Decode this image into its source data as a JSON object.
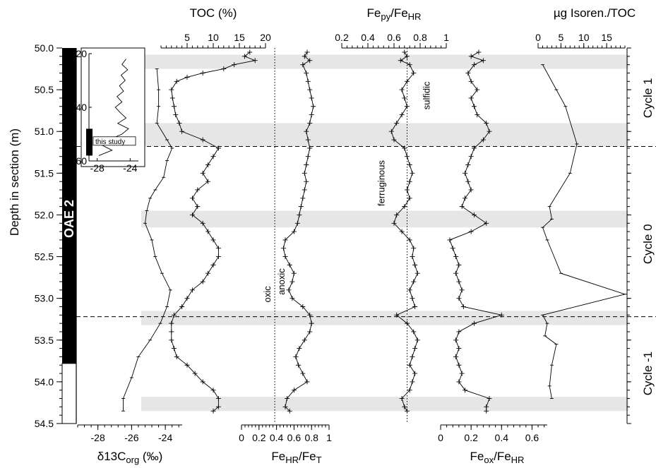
{
  "chart_data": {
    "type": "line",
    "depth_axis": {
      "label": "Depth in section (m)",
      "range": [
        50.0,
        54.5
      ],
      "ticks": [
        "50.0",
        "50.5",
        "51.0",
        "51.5",
        "52.0",
        "52.5",
        "53.0",
        "53.5",
        "54.0",
        "54.5"
      ],
      "inverted": true
    },
    "grey_bands_m": [
      [
        50.08,
        50.25
      ],
      [
        50.9,
        51.18
      ],
      [
        51.95,
        52.15
      ],
      [
        53.15,
        53.32
      ],
      [
        54.18,
        54.35
      ]
    ],
    "dashed_boundaries_m": [
      51.18,
      53.22
    ],
    "oae_label": "OAE 2",
    "cycles": [
      {
        "label": "Cycle 1",
        "center_m": 50.6
      },
      {
        "label": "Cycle 0",
        "center_m": 52.35
      },
      {
        "label": "Cycle -1",
        "center_m": 53.9
      }
    ],
    "panels": {
      "d13c": {
        "xlabel_parts": [
          "δ13C",
          "org",
          " (‰)"
        ],
        "ticks": [
          "-28",
          "-26",
          "-24"
        ],
        "tick_values": [
          -28,
          -26,
          -24
        ],
        "range": [
          -29.2,
          -23.0
        ],
        "depth": [
          50.25,
          50.5,
          50.7,
          50.9,
          51.1,
          51.2,
          51.35,
          51.55,
          51.7,
          51.8,
          51.95,
          52.1,
          52.3,
          52.5,
          52.7,
          52.9,
          53.1,
          53.3,
          53.5,
          53.7,
          53.95,
          54.2,
          54.35
        ],
        "values": [
          -24.5,
          -24.4,
          -24.4,
          -24.5,
          -23.9,
          -23.6,
          -23.9,
          -24.1,
          -24.6,
          -24.9,
          -25.1,
          -25.2,
          -24.8,
          -24.6,
          -24.2,
          -23.7,
          -23.9,
          -24.3,
          -24.9,
          -25.6,
          -26.0,
          -26.5,
          -26.5
        ]
      },
      "toc": {
        "title": "TOC (%)",
        "ticks": [
          "5",
          "10",
          "15",
          "20"
        ],
        "tick_values": [
          5,
          10,
          15,
          20
        ],
        "range": [
          0,
          20
        ],
        "depth": [
          50.05,
          50.1,
          50.15,
          50.2,
          50.25,
          50.3,
          50.35,
          50.4,
          50.5,
          50.6,
          50.7,
          50.8,
          50.9,
          51.0,
          51.1,
          51.2,
          51.3,
          51.4,
          51.5,
          51.6,
          51.7,
          51.8,
          51.9,
          52.0,
          52.1,
          52.2,
          52.3,
          52.4,
          52.5,
          52.6,
          52.7,
          52.8,
          52.9,
          53.0,
          53.1,
          53.2,
          53.3,
          53.4,
          53.5,
          53.6,
          53.7,
          53.8,
          53.9,
          54.0,
          54.1,
          54.2,
          54.3,
          54.35
        ],
        "values": [
          17,
          16,
          18,
          14,
          12,
          8,
          5,
          3,
          2,
          2.2,
          2.5,
          2.8,
          3.5,
          4,
          8,
          11,
          10,
          9,
          8,
          9,
          7,
          6,
          7,
          6,
          8,
          9,
          10,
          11,
          11,
          10,
          9,
          8,
          6,
          5,
          4,
          2.5,
          2,
          2,
          2,
          2.5,
          3,
          5,
          6.5,
          8,
          10,
          11,
          11,
          10
        ]
      },
      "fehr_fet": {
        "xlabel_parts": [
          "Fe",
          "HR",
          "/Fe",
          "T"
        ],
        "ticks": [
          "0",
          "0.2",
          "0.4",
          "0.6",
          "0.8",
          "1"
        ],
        "tick_values": [
          0,
          0.2,
          0.4,
          0.6,
          0.8,
          1
        ],
        "range": [
          0,
          1
        ],
        "threshold_value": 0.38,
        "threshold_labels": [
          "oxic",
          "anoxic"
        ],
        "depth": [
          50.05,
          50.1,
          50.15,
          50.2,
          50.3,
          50.4,
          50.5,
          50.6,
          50.7,
          50.8,
          50.9,
          51.0,
          51.1,
          51.2,
          51.3,
          51.4,
          51.5,
          51.6,
          51.7,
          51.8,
          51.9,
          52.0,
          52.1,
          52.2,
          52.3,
          52.4,
          52.5,
          52.6,
          52.7,
          52.8,
          52.9,
          53.0,
          53.1,
          53.2,
          53.3,
          53.4,
          53.5,
          53.6,
          53.7,
          53.8,
          53.9,
          54.0,
          54.1,
          54.2,
          54.3,
          54.35
        ],
        "values": [
          0.75,
          0.72,
          0.78,
          0.7,
          0.74,
          0.76,
          0.78,
          0.8,
          0.82,
          0.8,
          0.78,
          0.74,
          0.76,
          0.78,
          0.76,
          0.74,
          0.72,
          0.74,
          0.72,
          0.7,
          0.68,
          0.66,
          0.64,
          0.6,
          0.5,
          0.48,
          0.5,
          0.55,
          0.6,
          0.58,
          0.54,
          0.58,
          0.7,
          0.78,
          0.8,
          0.78,
          0.72,
          0.66,
          0.62,
          0.65,
          0.7,
          0.75,
          0.6,
          0.52,
          0.5,
          0.55
        ]
      },
      "fepy_fehr": {
        "title_parts": [
          "Fe",
          "py",
          "/Fe",
          "HR"
        ],
        "ticks": [
          "0.2",
          "0.4",
          "0.6",
          "0.8",
          "1"
        ],
        "tick_values": [
          0.2,
          0.4,
          0.6,
          0.8,
          1
        ],
        "range": [
          0.2,
          1
        ],
        "threshold_value": 0.7,
        "threshold_labels": [
          "ferruginous",
          "sulfidic"
        ],
        "depth": [
          50.05,
          50.1,
          50.15,
          50.2,
          50.3,
          50.4,
          50.5,
          50.6,
          50.7,
          50.8,
          50.9,
          51.0,
          51.1,
          51.2,
          51.3,
          51.4,
          51.5,
          51.6,
          51.7,
          51.8,
          51.9,
          52.0,
          52.1,
          52.2,
          52.3,
          52.4,
          52.5,
          52.6,
          52.7,
          52.8,
          52.9,
          53.0,
          53.1,
          53.2,
          53.3,
          53.4,
          53.5,
          53.6,
          53.7,
          53.8,
          53.9,
          54.0,
          54.1,
          54.2,
          54.3,
          54.35
        ],
        "values": [
          0.68,
          0.7,
          0.65,
          0.72,
          0.75,
          0.7,
          0.66,
          0.68,
          0.7,
          0.66,
          0.62,
          0.58,
          0.6,
          0.68,
          0.7,
          0.72,
          0.74,
          0.72,
          0.7,
          0.72,
          0.68,
          0.62,
          0.6,
          0.66,
          0.72,
          0.75,
          0.74,
          0.76,
          0.78,
          0.75,
          0.72,
          0.74,
          0.76,
          0.62,
          0.7,
          0.75,
          0.78,
          0.76,
          0.74,
          0.72,
          0.76,
          0.74,
          0.72,
          0.66,
          0.68,
          0.7
        ]
      },
      "feox_fehr": {
        "xlabel_parts": [
          "Fe",
          "ox",
          "/Fe",
          "HR"
        ],
        "ticks": [
          "0",
          "0.2",
          "0.4",
          "0.6"
        ],
        "tick_values": [
          0,
          0.2,
          0.4,
          0.6
        ],
        "range": [
          0,
          0.7
        ],
        "depth": [
          50.05,
          50.1,
          50.15,
          50.2,
          50.3,
          50.4,
          50.5,
          50.6,
          50.7,
          50.8,
          50.9,
          51.0,
          51.1,
          51.2,
          51.3,
          51.4,
          51.5,
          51.6,
          51.7,
          51.8,
          51.9,
          52.0,
          52.1,
          52.2,
          52.3,
          52.4,
          52.5,
          52.6,
          52.7,
          52.8,
          52.9,
          53.0,
          53.1,
          53.2,
          53.3,
          53.4,
          53.5,
          53.6,
          53.7,
          53.8,
          53.9,
          54.0,
          54.1,
          54.2,
          54.3,
          54.35
        ],
        "values": [
          0.25,
          0.2,
          0.28,
          0.22,
          0.18,
          0.2,
          0.24,
          0.2,
          0.22,
          0.24,
          0.3,
          0.32,
          0.28,
          0.22,
          0.2,
          0.18,
          0.16,
          0.18,
          0.2,
          0.16,
          0.14,
          0.22,
          0.3,
          0.2,
          0.06,
          0.08,
          0.1,
          0.12,
          0.1,
          0.12,
          0.14,
          0.12,
          0.15,
          0.4,
          0.22,
          0.12,
          0.1,
          0.12,
          0.1,
          0.12,
          0.14,
          0.12,
          0.16,
          0.32,
          0.3,
          0.3
        ]
      },
      "isoren": {
        "title": "µg Isoren./TOC",
        "ticks": [
          "0",
          "5",
          "10",
          "15"
        ],
        "tick_values": [
          0,
          5,
          10,
          15
        ],
        "range": [
          0,
          19
        ],
        "depth": [
          50.2,
          50.5,
          50.7,
          51.15,
          51.5,
          51.9,
          52.05,
          52.15,
          52.3,
          52.7,
          52.95,
          53.2,
          53.3,
          53.45,
          53.55,
          53.8,
          54.05,
          54.2
        ],
        "values": [
          1,
          4,
          6,
          8.5,
          7,
          2.5,
          3,
          1,
          2,
          5,
          19,
          1,
          2,
          1.5,
          4,
          3,
          2.5,
          3
        ]
      }
    },
    "inset": {
      "ticks_y": [
        "20",
        "40",
        "60"
      ],
      "tick_values_y": [
        20,
        40,
        60
      ],
      "range_y": [
        20,
        60
      ],
      "ticks_x": [
        "-28",
        "-24"
      ],
      "tick_values_x": [
        -28,
        -24
      ],
      "range_x": [
        -29,
        -23
      ],
      "label": "this study",
      "depth": [
        22,
        24,
        26,
        28,
        30,
        32,
        34,
        36,
        38,
        40,
        42,
        44,
        46,
        48,
        50,
        52,
        54,
        56,
        58
      ],
      "values": [
        -24.5,
        -25.0,
        -24.3,
        -25.1,
        -24.6,
        -25.3,
        -24.8,
        -25.6,
        -25.0,
        -25.8,
        -25.2,
        -24.5,
        -25.5,
        -24.2,
        -25.0,
        -26.5,
        -27.5,
        -26.2,
        -27.8
      ]
    }
  }
}
